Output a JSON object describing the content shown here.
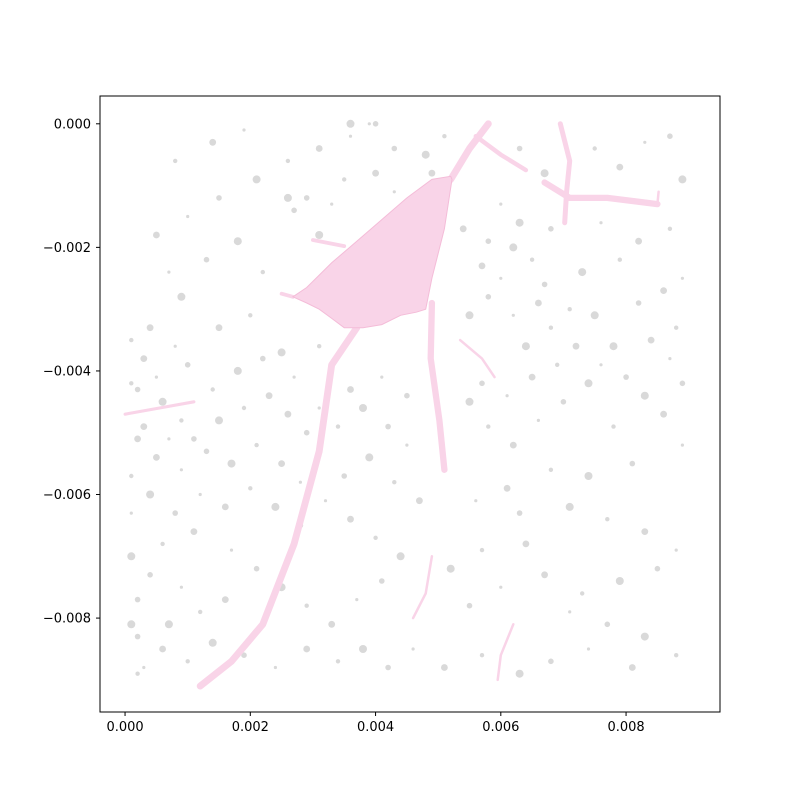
{
  "chart_data": {
    "type": "scatter",
    "title": "",
    "xlabel": "",
    "ylabel": "",
    "xlim": [
      -0.0004,
      0.0095
    ],
    "ylim": [
      -0.00952,
      0.00045
    ],
    "grid": false,
    "legend": "none",
    "x_ticks": [
      {
        "value": 0.0,
        "label": "0.000"
      },
      {
        "value": 0.002,
        "label": "0.002"
      },
      {
        "value": 0.004,
        "label": "0.004"
      },
      {
        "value": 0.006,
        "label": "0.006"
      },
      {
        "value": 0.008,
        "label": "0.008"
      }
    ],
    "y_ticks": [
      {
        "value": 0.0,
        "label": "0.000"
      },
      {
        "value": -0.002,
        "label": "−0.002"
      },
      {
        "value": -0.004,
        "label": "−0.004"
      },
      {
        "value": -0.006,
        "label": "−0.006"
      },
      {
        "value": -0.008,
        "label": "−0.008"
      }
    ],
    "colors": {
      "neuron": "#f9d4e8",
      "neuron_edge": "#f4bcd8",
      "particles": "#d9d9d9"
    },
    "neuron": {
      "soma": [
        [
          0.00268,
          -0.0028
        ],
        [
          0.0029,
          -0.00265
        ],
        [
          0.0033,
          -0.00225
        ],
        [
          0.0037,
          -0.0019
        ],
        [
          0.0041,
          -0.00155
        ],
        [
          0.0045,
          -0.0012
        ],
        [
          0.0049,
          -0.0009
        ],
        [
          0.0052,
          -0.00085
        ],
        [
          0.00522,
          -0.0009
        ],
        [
          0.0051,
          -0.0017
        ],
        [
          0.0049,
          -0.0025
        ],
        [
          0.0048,
          -0.003
        ],
        [
          0.00465,
          -0.00305
        ],
        [
          0.0044,
          -0.0031
        ],
        [
          0.0041,
          -0.00325
        ],
        [
          0.0038,
          -0.0033
        ],
        [
          0.0035,
          -0.0033
        ],
        [
          0.0033,
          -0.00315
        ],
        [
          0.0031,
          -0.003
        ],
        [
          0.0029,
          -0.0029
        ]
      ],
      "processes": [
        {
          "points": [
            [
              0.0052,
              -0.0009
            ],
            [
              0.0055,
              -0.0004
            ],
            [
              0.0058,
              0.0
            ]
          ],
          "width": 0.00011
        },
        {
          "points": [
            [
              0.0056,
              -0.0002
            ],
            [
              0.006,
              -0.0005
            ],
            [
              0.0064,
              -0.00075
            ]
          ],
          "width": 7e-05
        },
        {
          "points": [
            [
              0.0035,
              -0.00198
            ],
            [
              0.003,
              -0.00188
            ]
          ],
          "width": 6e-05
        },
        {
          "points": [
            [
              0.00268,
              -0.0028
            ],
            [
              0.0025,
              -0.00275
            ]
          ],
          "width": 6e-05
        },
        {
          "points": [
            [
              0.0037,
              -0.0033
            ],
            [
              0.0033,
              -0.0039
            ],
            [
              0.0031,
              -0.0053
            ],
            [
              0.0027,
              -0.0068
            ],
            [
              0.0022,
              -0.0081
            ],
            [
              0.0017,
              -0.0087
            ],
            [
              0.0012,
              -0.0091
            ]
          ],
          "width": 0.00011
        },
        {
          "points": [
            [
              0.0049,
              -0.0029
            ],
            [
              0.00488,
              -0.0038
            ],
            [
              0.00502,
              -0.0048
            ],
            [
              0.0051,
              -0.0056
            ]
          ],
          "width": 0.0001
        },
        {
          "points": [
            [
              0.0041,
              -0.0029
            ],
            [
              0.0043,
              -0.0024
            ],
            [
              0.0045,
              -0.0017
            ]
          ],
          "width": 6e-05
        },
        {
          "points": [
            [
              0.00535,
              -0.0035
            ],
            [
              0.0057,
              -0.0038
            ],
            [
              0.0059,
              -0.0041
            ]
          ],
          "width": 4e-05
        },
        {
          "points": [
            [
              0.0,
              -0.0047
            ],
            [
              0.00055,
              -0.0046
            ],
            [
              0.0011,
              -0.0045
            ]
          ],
          "width": 5e-05
        },
        {
          "points": [
            [
              0.0049,
              -0.007
            ],
            [
              0.0048,
              -0.0076
            ],
            [
              0.0046,
              -0.008
            ]
          ],
          "width": 4e-05
        },
        {
          "points": [
            [
              0.0062,
              -0.0081
            ],
            [
              0.006,
              -0.0086
            ],
            [
              0.00595,
              -0.009
            ]
          ],
          "width": 4e-05
        },
        {
          "points": [
            [
              0.00695,
              0.0
            ],
            [
              0.0071,
              -0.0006
            ],
            [
              0.00705,
              -0.0011
            ],
            [
              0.00702,
              -0.0016
            ]
          ],
          "width": 8e-05
        },
        {
          "points": [
            [
              0.0067,
              -0.00095
            ],
            [
              0.0071,
              -0.0012
            ],
            [
              0.0077,
              -0.0012
            ],
            [
              0.0085,
              -0.0013
            ]
          ],
          "width": 0.0001
        },
        {
          "points": [
            [
              0.0085,
              -0.0013
            ],
            [
              0.00852,
              -0.0011
            ]
          ],
          "width": 4e-05
        }
      ]
    },
    "particles": {
      "points": [
        [
          0.0039,
          0.0
        ],
        [
          0.004,
          0.0
        ],
        [
          0.0036,
          0.0
        ],
        [
          0.0051,
          -0.0002
        ],
        [
          0.0049,
          -0.0008
        ],
        [
          0.0033,
          -0.0013
        ],
        [
          0.0029,
          -0.0012
        ],
        [
          0.0026,
          -0.0012
        ],
        [
          0.0047,
          -0.0014
        ],
        [
          0.0054,
          -0.0017
        ],
        [
          0.006,
          -0.0013
        ],
        [
          0.0058,
          -0.0019
        ],
        [
          0.0062,
          -0.002
        ],
        [
          0.0065,
          -0.0022
        ],
        [
          0.0057,
          -0.0023
        ],
        [
          0.006,
          -0.0025
        ],
        [
          0.0067,
          -0.0026
        ],
        [
          0.0073,
          -0.0024
        ],
        [
          0.0079,
          -0.0022
        ],
        [
          0.0086,
          -0.0027
        ],
        [
          0.0089,
          -0.0025
        ],
        [
          0.0082,
          -0.0029
        ],
        [
          0.0075,
          -0.0031
        ],
        [
          0.0088,
          -0.0033
        ],
        [
          0.0084,
          -0.0035
        ],
        [
          0.0087,
          -0.0038
        ],
        [
          0.0089,
          -0.0042
        ],
        [
          0.0083,
          -0.0044
        ],
        [
          0.0078,
          -0.0049
        ],
        [
          0.0086,
          -0.0047
        ],
        [
          0.0089,
          -0.0052
        ],
        [
          0.0081,
          -0.0055
        ],
        [
          0.0074,
          -0.0057
        ],
        [
          0.0068,
          -0.0056
        ],
        [
          0.0061,
          -0.0059
        ],
        [
          0.0056,
          -0.0061
        ],
        [
          0.0063,
          -0.0063
        ],
        [
          0.0071,
          -0.0062
        ],
        [
          0.0077,
          -0.0064
        ],
        [
          0.0083,
          -0.0066
        ],
        [
          0.0088,
          -0.0069
        ],
        [
          0.0085,
          -0.0072
        ],
        [
          0.0079,
          -0.0074
        ],
        [
          0.0073,
          -0.0076
        ],
        [
          0.0067,
          -0.0073
        ],
        [
          0.006,
          -0.0075
        ],
        [
          0.0055,
          -0.0078
        ],
        [
          0.0052,
          -0.0072
        ],
        [
          0.0057,
          -0.0069
        ],
        [
          0.0064,
          -0.0068
        ],
        [
          0.0071,
          -0.0079
        ],
        [
          0.0077,
          -0.0081
        ],
        [
          0.0083,
          -0.0083
        ],
        [
          0.0088,
          -0.0086
        ],
        [
          0.0081,
          -0.0088
        ],
        [
          0.0074,
          -0.0085
        ],
        [
          0.0068,
          -0.0087
        ],
        [
          0.0063,
          -0.0089
        ],
        [
          0.0057,
          -0.0086
        ],
        [
          0.0051,
          -0.0088
        ],
        [
          0.0046,
          -0.0085
        ],
        [
          0.0042,
          -0.0088
        ],
        [
          0.0038,
          -0.0085
        ],
        [
          0.0034,
          -0.0087
        ],
        [
          0.0029,
          -0.0085
        ],
        [
          0.0024,
          -0.0088
        ],
        [
          0.0019,
          -0.0086
        ],
        [
          0.0014,
          -0.0084
        ],
        [
          0.001,
          -0.0087
        ],
        [
          0.0006,
          -0.0085
        ],
        [
          0.0003,
          -0.0088
        ],
        [
          0.0002,
          -0.0083
        ],
        [
          0.0007,
          -0.0081
        ],
        [
          0.0012,
          -0.0079
        ],
        [
          0.0016,
          -0.0077
        ],
        [
          0.0009,
          -0.0075
        ],
        [
          0.0004,
          -0.0073
        ],
        [
          0.0001,
          -0.007
        ],
        [
          0.0006,
          -0.0068
        ],
        [
          0.0011,
          -0.0066
        ],
        [
          0.0017,
          -0.0069
        ],
        [
          0.0021,
          -0.0072
        ],
        [
          0.0025,
          -0.0075
        ],
        [
          0.0029,
          -0.0078
        ],
        [
          0.0033,
          -0.0081
        ],
        [
          0.0037,
          -0.0077
        ],
        [
          0.0041,
          -0.0074
        ],
        [
          0.0044,
          -0.007
        ],
        [
          0.004,
          -0.0067
        ],
        [
          0.0036,
          -0.0064
        ],
        [
          0.0032,
          -0.0061
        ],
        [
          0.0028,
          -0.0065
        ],
        [
          0.0024,
          -0.0062
        ],
        [
          0.002,
          -0.0059
        ],
        [
          0.0016,
          -0.0062
        ],
        [
          0.0012,
          -0.006
        ],
        [
          0.0008,
          -0.0063
        ],
        [
          0.0004,
          -0.006
        ],
        [
          0.0001,
          -0.0057
        ],
        [
          0.0005,
          -0.0054
        ],
        [
          0.0009,
          -0.0056
        ],
        [
          0.0013,
          -0.0053
        ],
        [
          0.0017,
          -0.0055
        ],
        [
          0.0021,
          -0.0052
        ],
        [
          0.0025,
          -0.0055
        ],
        [
          0.0028,
          -0.0058
        ],
        [
          0.0035,
          -0.0057
        ],
        [
          0.0039,
          -0.0054
        ],
        [
          0.0043,
          -0.0058
        ],
        [
          0.0047,
          -0.0061
        ],
        [
          0.0045,
          -0.0052
        ],
        [
          0.0042,
          -0.0049
        ],
        [
          0.0038,
          -0.0046
        ],
        [
          0.0034,
          -0.0049
        ],
        [
          0.0036,
          -0.0043
        ],
        [
          0.0041,
          -0.0041
        ],
        [
          0.0045,
          -0.0044
        ],
        [
          0.0055,
          -0.0045
        ],
        [
          0.0058,
          -0.0049
        ],
        [
          0.0062,
          -0.0052
        ],
        [
          0.0066,
          -0.0048
        ],
        [
          0.007,
          -0.0045
        ],
        [
          0.0074,
          -0.0042
        ],
        [
          0.0069,
          -0.0039
        ],
        [
          0.0065,
          -0.0041
        ],
        [
          0.0061,
          -0.0044
        ],
        [
          0.0057,
          -0.0042
        ],
        [
          0.0064,
          -0.0036
        ],
        [
          0.0068,
          -0.0033
        ],
        [
          0.0072,
          -0.0036
        ],
        [
          0.0076,
          -0.0039
        ],
        [
          0.008,
          -0.0041
        ],
        [
          0.0078,
          -0.0036
        ],
        [
          0.0071,
          -0.003
        ],
        [
          0.0066,
          -0.0029
        ],
        [
          0.0062,
          -0.0031
        ],
        [
          0.0058,
          -0.0028
        ],
        [
          0.0055,
          -0.0031
        ],
        [
          0.0001,
          -0.0035
        ],
        [
          0.0003,
          -0.0038
        ],
        [
          0.0005,
          -0.0041
        ],
        [
          0.0002,
          -0.0043
        ],
        [
          0.0006,
          -0.0045
        ],
        [
          0.0009,
          -0.0048
        ],
        [
          0.0003,
          -0.0049
        ],
        [
          0.0007,
          -0.0051
        ],
        [
          0.0011,
          -0.0051
        ],
        [
          0.0015,
          -0.0048
        ],
        [
          0.0019,
          -0.0046
        ],
        [
          0.0023,
          -0.0044
        ],
        [
          0.0027,
          -0.0041
        ],
        [
          0.0022,
          -0.0038
        ],
        [
          0.0018,
          -0.004
        ],
        [
          0.0014,
          -0.0043
        ],
        [
          0.0004,
          -0.0033
        ],
        [
          0.0008,
          -0.0036
        ],
        [
          0.001,
          -0.0039
        ],
        [
          0.0025,
          -0.0037
        ],
        [
          0.0031,
          -0.0036
        ],
        [
          0.0026,
          -0.0047
        ],
        [
          0.0031,
          -0.0046
        ],
        [
          0.0029,
          -0.005
        ],
        [
          0.0009,
          -0.0028
        ],
        [
          0.002,
          -0.0031
        ],
        [
          0.0015,
          -0.0033
        ],
        [
          0.0007,
          -0.0024
        ],
        [
          0.0013,
          -0.0022
        ],
        [
          0.0018,
          -0.0019
        ],
        [
          0.0022,
          -0.0024
        ],
        [
          0.0005,
          -0.0018
        ],
        [
          0.001,
          -0.0015
        ],
        [
          0.0015,
          -0.0012
        ],
        [
          0.0021,
          -0.0009
        ],
        [
          0.0026,
          -0.0006
        ],
        [
          0.0031,
          -0.0004
        ],
        [
          0.0036,
          -0.0002
        ],
        [
          0.0043,
          -0.0004
        ],
        [
          0.0048,
          -0.0005
        ],
        [
          0.0008,
          -0.0006
        ],
        [
          0.0014,
          -0.0003
        ],
        [
          0.0019,
          -0.0001
        ],
        [
          0.0027,
          -0.0014
        ],
        [
          0.0031,
          -0.0018
        ],
        [
          0.0035,
          -0.0009
        ],
        [
          0.004,
          -0.0008
        ],
        [
          0.0043,
          -0.0011
        ],
        [
          0.0063,
          -0.0004
        ],
        [
          0.0067,
          -0.0008
        ],
        [
          0.0075,
          -0.0004
        ],
        [
          0.0079,
          -0.0007
        ],
        [
          0.0083,
          -0.0003
        ],
        [
          0.0087,
          -0.0002
        ],
        [
          0.0089,
          -0.0009
        ],
        [
          0.0087,
          -0.0017
        ],
        [
          0.0082,
          -0.0019
        ],
        [
          0.0076,
          -0.0016
        ],
        [
          0.0068,
          -0.0017
        ],
        [
          0.0063,
          -0.0016
        ],
        [
          0.0001,
          -0.0042
        ],
        [
          0.0002,
          -0.0051
        ],
        [
          0.0001,
          -0.0063
        ],
        [
          0.0002,
          -0.0077
        ],
        [
          0.0001,
          -0.0081
        ],
        [
          0.0002,
          -0.0089
        ]
      ]
    }
  }
}
